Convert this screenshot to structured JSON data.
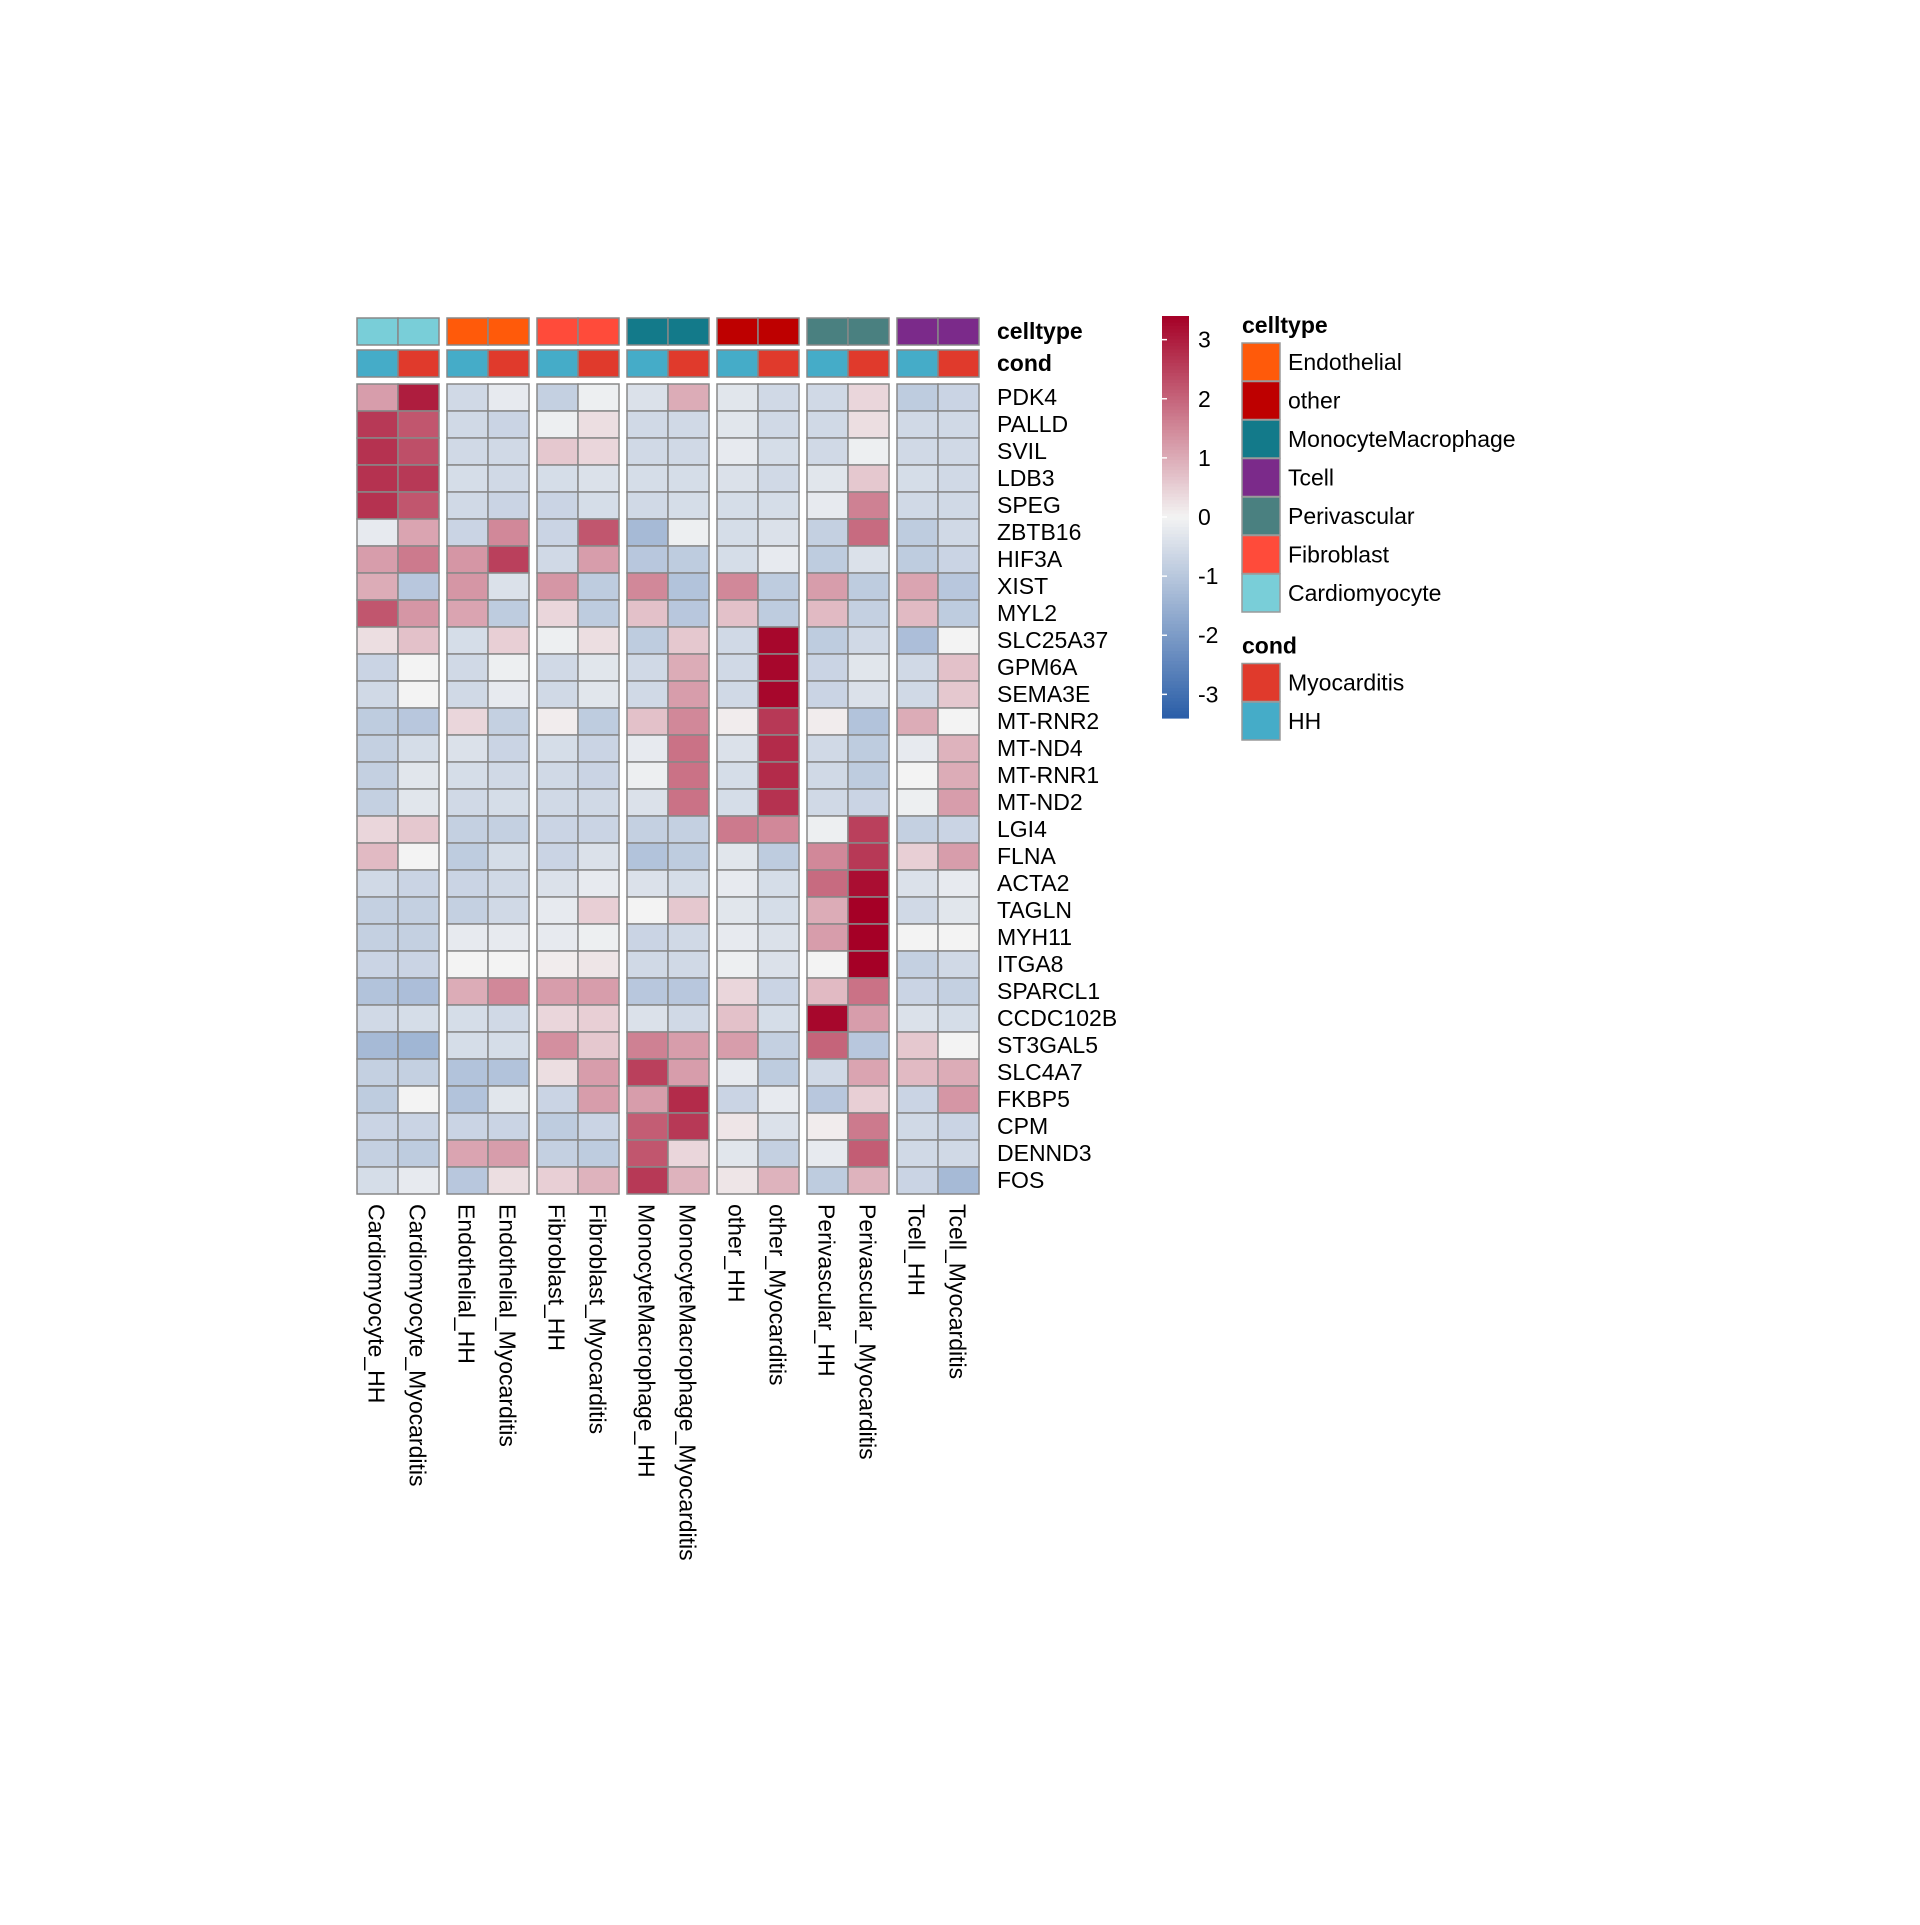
{
  "chart_data": {
    "type": "heatmap",
    "columns": [
      "Cardiomyocyte_HH",
      "Cardiomyocyte_Myocarditis",
      "Endothelial_HH",
      "Endothelial_Myocarditis",
      "Fibroblast_HH",
      "Fibroblast_Myocarditis",
      "MonocyteMacrophage_HH",
      "MonocyteMacrophage_Myocarditis",
      "other_HH",
      "other_Myocarditis",
      "Perivascular_HH",
      "Perivascular_Myocarditis",
      "Tcell_HH",
      "Tcell_Myocarditis"
    ],
    "column_groups": [
      "Cardiomyocyte",
      "Endothelial",
      "Fibroblast",
      "MonocyteMacrophage",
      "other",
      "Perivascular",
      "Tcell"
    ],
    "rows": [
      "PDK4",
      "PALLD",
      "SVIL",
      "LDB3",
      "SPEG",
      "ZBTB16",
      "HIF3A",
      "XIST",
      "MYL2",
      "SLC25A37",
      "GPM6A",
      "SEMA3E",
      "MT-RNR2",
      "MT-ND4",
      "MT-RNR1",
      "MT-ND2",
      "LGI4",
      "FLNA",
      "ACTA2",
      "TAGLN",
      "MYH11",
      "ITGA8",
      "SPARCL1",
      "CCDC102B",
      "ST3GAL5",
      "SLC4A7",
      "FKBP5",
      "CPM",
      "DENND3",
      "FOS"
    ],
    "values": [
      [
        1.2,
        3.0,
        -0.6,
        -0.2,
        -0.8,
        -0.1,
        -0.4,
        1.0,
        -0.3,
        -0.6,
        -0.6,
        0.4,
        -0.9,
        -0.7
      ],
      [
        2.6,
        2.2,
        -0.6,
        -0.7,
        -0.1,
        0.3,
        -0.6,
        -0.6,
        -0.3,
        -0.6,
        -0.6,
        0.3,
        -0.6,
        -0.6
      ],
      [
        2.7,
        2.3,
        -0.6,
        -0.6,
        0.6,
        0.4,
        -0.6,
        -0.6,
        -0.2,
        -0.5,
        -0.6,
        -0.1,
        -0.6,
        -0.6
      ],
      [
        2.7,
        2.6,
        -0.5,
        -0.6,
        -0.5,
        -0.4,
        -0.5,
        -0.5,
        -0.4,
        -0.6,
        -0.3,
        0.6,
        -0.5,
        -0.6
      ],
      [
        2.7,
        2.2,
        -0.6,
        -0.7,
        -0.7,
        -0.5,
        -0.6,
        -0.5,
        -0.5,
        -0.5,
        -0.2,
        1.6,
        -0.6,
        -0.6
      ],
      [
        -0.2,
        1.1,
        -0.7,
        1.5,
        -0.7,
        2.2,
        -1.3,
        -0.1,
        -0.5,
        -0.4,
        -0.8,
        1.9,
        -0.9,
        -0.6
      ],
      [
        1.2,
        1.7,
        1.3,
        2.5,
        -0.6,
        1.2,
        -1.0,
        -0.9,
        -0.5,
        -0.2,
        -0.9,
        -0.4,
        -0.9,
        -0.7
      ],
      [
        1.0,
        -1.0,
        1.3,
        -0.4,
        1.3,
        -0.9,
        1.5,
        -1.1,
        1.5,
        -0.9,
        1.2,
        -0.9,
        1.1,
        -1.0
      ],
      [
        2.2,
        1.3,
        1.1,
        -0.9,
        0.4,
        -0.9,
        0.7,
        -1.0,
        0.7,
        -0.9,
        0.8,
        -0.8,
        0.8,
        -0.9
      ],
      [
        0.3,
        0.7,
        -0.5,
        0.5,
        -0.1,
        0.3,
        -0.9,
        0.6,
        -0.6,
        3.3,
        -0.9,
        -0.6,
        -1.2,
        0.0
      ],
      [
        -0.7,
        0.0,
        -0.6,
        -0.1,
        -0.6,
        -0.3,
        -0.6,
        1.0,
        -0.6,
        3.3,
        -0.7,
        -0.3,
        -0.6,
        0.7
      ],
      [
        -0.6,
        0.0,
        -0.6,
        -0.2,
        -0.6,
        -0.3,
        -0.6,
        1.2,
        -0.6,
        3.3,
        -0.7,
        -0.4,
        -0.6,
        0.6
      ],
      [
        -0.9,
        -1.0,
        0.4,
        -0.8,
        0.1,
        -0.9,
        0.7,
        1.5,
        0.1,
        2.6,
        0.1,
        -1.1,
        1.0,
        0.0
      ],
      [
        -0.8,
        -0.5,
        -0.4,
        -0.7,
        -0.5,
        -0.7,
        -0.2,
        1.8,
        -0.4,
        2.8,
        -0.6,
        -0.9,
        -0.2,
        0.9
      ],
      [
        -0.8,
        -0.3,
        -0.5,
        -0.6,
        -0.6,
        -0.7,
        -0.1,
        1.8,
        -0.5,
        2.8,
        -0.6,
        -0.9,
        0.0,
        1.0
      ],
      [
        -0.8,
        -0.3,
        -0.6,
        -0.5,
        -0.6,
        -0.6,
        -0.4,
        1.8,
        -0.5,
        2.7,
        -0.6,
        -0.7,
        -0.1,
        1.2
      ],
      [
        0.4,
        0.6,
        -0.8,
        -0.8,
        -0.7,
        -0.7,
        -0.8,
        -0.8,
        1.7,
        1.5,
        -0.1,
        2.5,
        -0.8,
        -0.7
      ],
      [
        0.8,
        0.0,
        -0.9,
        -0.5,
        -0.7,
        -0.4,
        -1.1,
        -0.9,
        -0.3,
        -0.9,
        1.5,
        2.6,
        0.5,
        1.2
      ],
      [
        -0.6,
        -0.7,
        -0.7,
        -0.6,
        -0.4,
        -0.2,
        -0.4,
        -0.5,
        -0.2,
        -0.5,
        1.9,
        3.2,
        -0.4,
        -0.2
      ],
      [
        -0.8,
        -0.8,
        -0.8,
        -0.6,
        -0.2,
        0.5,
        0.0,
        0.6,
        -0.3,
        -0.5,
        1.0,
        3.4,
        -0.6,
        -0.3
      ],
      [
        -0.8,
        -0.8,
        -0.2,
        -0.2,
        -0.2,
        -0.1,
        -0.7,
        -0.6,
        -0.2,
        -0.4,
        1.2,
        3.4,
        0.0,
        0.0
      ],
      [
        -0.7,
        -0.7,
        0.0,
        0.0,
        0.1,
        0.2,
        -0.6,
        -0.6,
        -0.1,
        -0.4,
        0.0,
        3.4,
        -0.8,
        -0.6
      ],
      [
        -1.1,
        -1.2,
        1.0,
        1.5,
        1.2,
        1.2,
        -1.0,
        -1.0,
        0.4,
        -0.7,
        0.8,
        1.8,
        -0.7,
        -0.8
      ],
      [
        -0.6,
        -0.5,
        -0.5,
        -0.6,
        0.4,
        0.5,
        -0.4,
        -0.6,
        0.7,
        -0.5,
        3.3,
        1.2,
        -0.4,
        -0.5
      ],
      [
        -1.3,
        -1.4,
        -0.5,
        -0.5,
        1.4,
        0.6,
        1.6,
        1.2,
        1.2,
        -0.8,
        2.0,
        -1.0,
        0.6,
        0.0
      ],
      [
        -0.8,
        -0.8,
        -1.1,
        -1.1,
        0.3,
        1.2,
        2.5,
        1.2,
        -0.2,
        -0.9,
        -0.6,
        1.1,
        0.8,
        1.0
      ],
      [
        -0.9,
        0.0,
        -1.1,
        -0.3,
        -0.7,
        1.2,
        1.2,
        2.8,
        -0.7,
        -0.2,
        -1.0,
        0.5,
        -0.7,
        1.3
      ],
      [
        -0.7,
        -0.7,
        -0.7,
        -0.7,
        -0.9,
        -0.7,
        2.1,
        2.6,
        0.2,
        -0.4,
        0.1,
        1.7,
        -0.6,
        -0.7
      ],
      [
        -0.8,
        -0.9,
        1.1,
        1.2,
        -0.8,
        -0.9,
        2.2,
        0.4,
        -0.3,
        -0.8,
        -0.2,
        2.1,
        -0.6,
        -0.6
      ],
      [
        -0.5,
        -0.2,
        -1.0,
        0.3,
        0.5,
        0.9,
        2.6,
        0.9,
        0.2,
        0.9,
        -0.9,
        0.9,
        -0.7,
        -1.3
      ]
    ],
    "annotations": {
      "celltype": [
        "Cardiomyocyte",
        "Cardiomyocyte",
        "Endothelial",
        "Endothelial",
        "Fibroblast",
        "Fibroblast",
        "MonocyteMacrophage",
        "MonocyteMacrophage",
        "other",
        "other",
        "Perivascular",
        "Perivascular",
        "Tcell",
        "Tcell"
      ],
      "cond": [
        "HH",
        "Myocarditis",
        "HH",
        "Myocarditis",
        "HH",
        "Myocarditis",
        "HH",
        "Myocarditis",
        "HH",
        "Myocarditis",
        "HH",
        "Myocarditis",
        "HH",
        "Myocarditis"
      ]
    },
    "annotation_labels": [
      "celltype",
      "cond"
    ],
    "colorbar": {
      "range": [
        -3.4,
        3.4
      ],
      "ticks": [
        3,
        2,
        1,
        0,
        -1,
        -2,
        -3
      ],
      "low_color": "#2a5ea8",
      "mid_color": "#f3f3f3",
      "high_color": "#a50026"
    },
    "legends": [
      {
        "title": "celltype",
        "items": [
          {
            "label": "Endothelial",
            "color": "#ff5a0a"
          },
          {
            "label": "other",
            "color": "#be0000"
          },
          {
            "label": "MonocyteMacrophage",
            "color": "#137a8a"
          },
          {
            "label": "Tcell",
            "color": "#7b2a8a"
          },
          {
            "label": "Perivascular",
            "color": "#4a8080"
          },
          {
            "label": "Fibroblast",
            "color": "#ff4b3a"
          },
          {
            "label": "Cardiomyocyte",
            "color": "#79ced8"
          }
        ]
      },
      {
        "title": "cond",
        "items": [
          {
            "label": "Myocarditis",
            "color": "#e03a2c"
          },
          {
            "label": "HH",
            "color": "#45acc8"
          }
        ]
      }
    ]
  }
}
